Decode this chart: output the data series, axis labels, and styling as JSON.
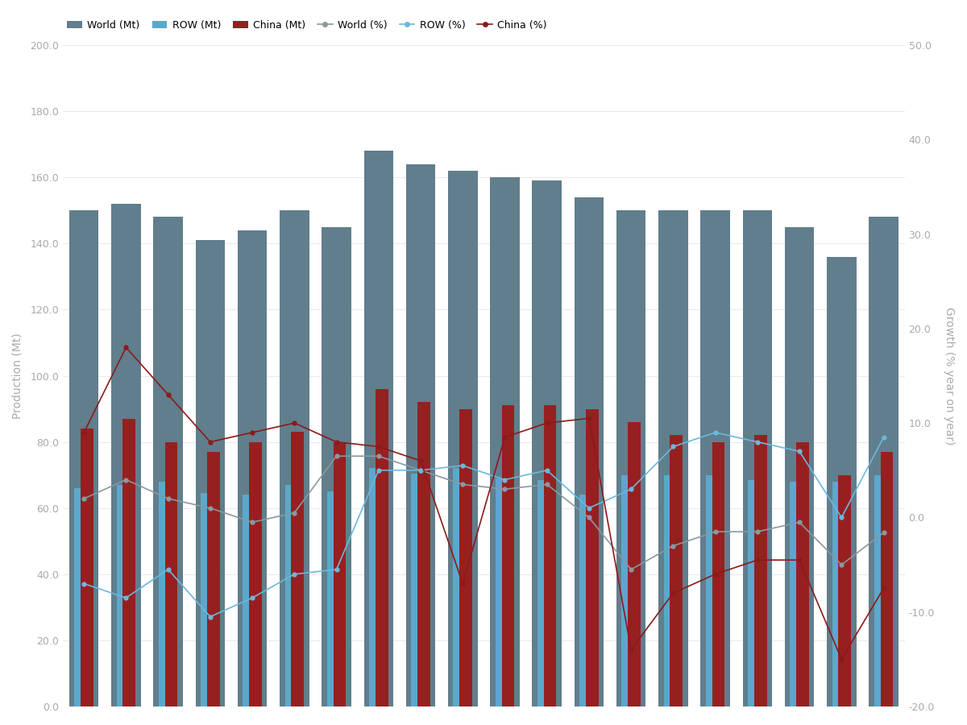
{
  "world_mt": [
    150.0,
    152.0,
    148.0,
    141.0,
    144.0,
    150.0,
    145.0,
    168.0,
    164.0,
    162.0,
    160.0,
    159.0,
    154.0,
    150.0,
    150.0,
    150.0,
    150.0,
    145.0,
    136.0,
    148.0
  ],
  "row_mt": [
    66.0,
    67.0,
    68.0,
    64.5,
    64.0,
    67.0,
    65.0,
    72.0,
    70.5,
    72.0,
    69.0,
    68.5,
    64.0,
    70.0,
    70.0,
    70.0,
    68.5,
    68.0,
    68.0,
    70.0
  ],
  "china_mt": [
    84.0,
    87.0,
    80.0,
    77.0,
    80.0,
    83.0,
    80.0,
    96.0,
    92.0,
    90.0,
    91.0,
    91.0,
    90.0,
    86.0,
    82.0,
    80.0,
    82.0,
    80.0,
    70.0,
    77.0
  ],
  "world_pct": [
    2.0,
    4.0,
    2.0,
    1.0,
    -0.5,
    0.5,
    6.5,
    6.5,
    5.0,
    3.5,
    3.0,
    3.5,
    0.0,
    -5.5,
    -3.0,
    -1.5,
    -1.5,
    -0.5,
    -5.0,
    -1.6
  ],
  "row_pct": [
    -7.0,
    -8.5,
    -5.5,
    -10.5,
    -8.5,
    -6.0,
    -5.5,
    5.0,
    5.0,
    5.5,
    4.0,
    5.0,
    1.0,
    3.0,
    7.5,
    9.0,
    8.0,
    7.0,
    0.0,
    8.5
  ],
  "china_pct": [
    9.0,
    18.0,
    13.0,
    8.0,
    9.0,
    10.0,
    8.0,
    7.5,
    6.0,
    -7.0,
    8.5,
    10.0,
    10.5,
    -14.0,
    -8.0,
    -6.0,
    -4.5,
    -4.5,
    -15.0,
    -7.5
  ],
  "color_world": "#617E8C",
  "color_row": "#5BA8CC",
  "color_china": "#962020",
  "color_world_line": "#8899A0",
  "color_row_line": "#6BB8DC",
  "color_china_line": "#8B1A1A",
  "ylim_left": [
    0.0,
    200.0
  ],
  "ylim_right": [
    -20.0,
    50.0
  ],
  "yticks_left": [
    0.0,
    20.0,
    40.0,
    60.0,
    80.0,
    100.0,
    120.0,
    140.0,
    160.0,
    180.0,
    200.0
  ],
  "yticks_right": [
    -20.0,
    -10.0,
    0.0,
    10.0,
    20.0,
    30.0,
    40.0,
    50.0
  ],
  "ylabel_left": "Production (Mt)",
  "ylabel_right": "Growth (% year on year)",
  "bg_color": "#FFFFFF",
  "world_bar_width": 0.7,
  "sub_bar_width": 0.3
}
